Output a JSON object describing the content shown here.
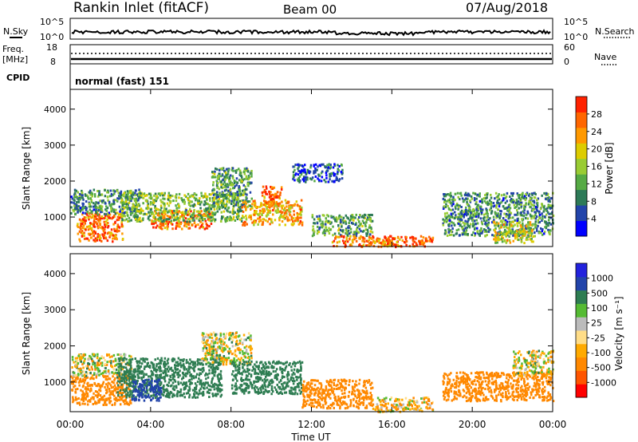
{
  "header": {
    "station": "Rankin Inlet (fitACF)",
    "beam": "Beam 00",
    "date": "07/Aug/2018"
  },
  "top_panels": {
    "nsky_label": "N.Sky",
    "nsky_ticks": [
      "10^5",
      "10^0"
    ],
    "nsearch_label": "N.Search",
    "nsearch_ticks": [
      "10^5",
      "10^0"
    ],
    "freq_label": "Freq.",
    "freq_unit": "[MHz]",
    "freq_ticks": [
      "18",
      "8"
    ],
    "nave_label": "Nave",
    "nave_ticks": [
      "60",
      "0"
    ],
    "cpid_label": "CPID",
    "cpid_value": "normal (fast) 151"
  },
  "colors": {
    "power": [
      "#0000ff",
      "#2244aa",
      "#2d7a57",
      "#55aa44",
      "#99cc33",
      "#ddcc00",
      "#ff9900",
      "#ff6600",
      "#ff2200"
    ],
    "velocity": [
      "#ff0000",
      "#ff5500",
      "#ff8800",
      "#ffaa00",
      "#ffdd88",
      "#bbbbbb",
      "#55bb33",
      "#2e7d52",
      "#2244aa",
      "#2222dd"
    ]
  },
  "chart_data": [
    {
      "type": "heatmap",
      "panel": "power",
      "ylabel": "Slant Range [km]",
      "yticks": [
        "1000",
        "2000",
        "3000",
        "4000"
      ],
      "ylim": [
        180,
        4550
      ],
      "xlim_hours": [
        0,
        24
      ],
      "colorbar_label": "Power [dB]",
      "colorbar_ticks": [
        "4",
        "8",
        "12",
        "16",
        "20",
        "24",
        "28"
      ],
      "colorbar_range": [
        0,
        32
      ],
      "regions": [
        {
          "t": [
            0.3,
            2.6
          ],
          "r": [
            350,
            1150
          ],
          "level": 26
        },
        {
          "t": [
            0,
            3.5
          ],
          "r": [
            1100,
            1800
          ],
          "level": 10
        },
        {
          "t": [
            4.0,
            7.0
          ],
          "r": [
            700,
            1200
          ],
          "level": 26
        },
        {
          "t": [
            2.5,
            8.5
          ],
          "r": [
            900,
            1700
          ],
          "level": 14
        },
        {
          "t": [
            7.0,
            9.0
          ],
          "r": [
            1300,
            2400
          ],
          "level": 12
        },
        {
          "t": [
            8.5,
            11.5
          ],
          "r": [
            800,
            1500
          ],
          "level": 22
        },
        {
          "t": [
            9.5,
            10.5
          ],
          "r": [
            1400,
            1900
          ],
          "level": 27
        },
        {
          "t": [
            11.0,
            13.5
          ],
          "r": [
            2000,
            2500
          ],
          "level": 6
        },
        {
          "t": [
            12.0,
            15.0
          ],
          "r": [
            500,
            1100
          ],
          "level": 12
        },
        {
          "t": [
            13.0,
            16.0
          ],
          "r": [
            200,
            500
          ],
          "level": 25
        },
        {
          "t": [
            15.5,
            18.0
          ],
          "r": [
            200,
            500
          ],
          "level": 27
        },
        {
          "t": [
            18.5,
            24.0
          ],
          "r": [
            500,
            1700
          ],
          "level": 10
        },
        {
          "t": [
            21.0,
            23.0
          ],
          "r": [
            300,
            900
          ],
          "level": 18
        }
      ]
    },
    {
      "type": "heatmap",
      "panel": "velocity",
      "ylabel": "Slant Range [km]",
      "yticks": [
        "1000",
        "2000",
        "3000",
        "4000"
      ],
      "ylim": [
        180,
        4550
      ],
      "xlim_hours": [
        0,
        24
      ],
      "xticks": [
        "00:00",
        "04:00",
        "08:00",
        "12:00",
        "16:00",
        "20:00",
        "00:00"
      ],
      "xlabel": "Time UT",
      "colorbar_label": "Velocity [m s⁻¹]",
      "colorbar_ticks": [
        "1000",
        "500",
        "100",
        "25",
        "-25",
        "-100",
        "-500",
        "-1000"
      ],
      "colorbar_range": [
        -1000,
        1000
      ],
      "regions": [
        {
          "t": [
            0,
            3.0
          ],
          "r": [
            400,
            1200
          ],
          "level": -300
        },
        {
          "t": [
            0,
            3.0
          ],
          "r": [
            1200,
            1800
          ],
          "level": 0
        },
        {
          "t": [
            2.3,
            7.5
          ],
          "r": [
            600,
            1700
          ],
          "level": 300
        },
        {
          "t": [
            3.0,
            4.5
          ],
          "r": [
            500,
            1100
          ],
          "level": 800
        },
        {
          "t": [
            6.5,
            9.0
          ],
          "r": [
            1500,
            2400
          ],
          "level": 0
        },
        {
          "t": [
            8.0,
            11.5
          ],
          "r": [
            700,
            1600
          ],
          "level": 250
        },
        {
          "t": [
            11.5,
            15.0
          ],
          "r": [
            300,
            1100
          ],
          "level": -300
        },
        {
          "t": [
            15.0,
            18.0
          ],
          "r": [
            200,
            600
          ],
          "level": -50
        },
        {
          "t": [
            18.5,
            24.0
          ],
          "r": [
            500,
            1300
          ],
          "level": -350
        },
        {
          "t": [
            22.0,
            24.0
          ],
          "r": [
            1200,
            1900
          ],
          "level": 0
        }
      ]
    }
  ]
}
